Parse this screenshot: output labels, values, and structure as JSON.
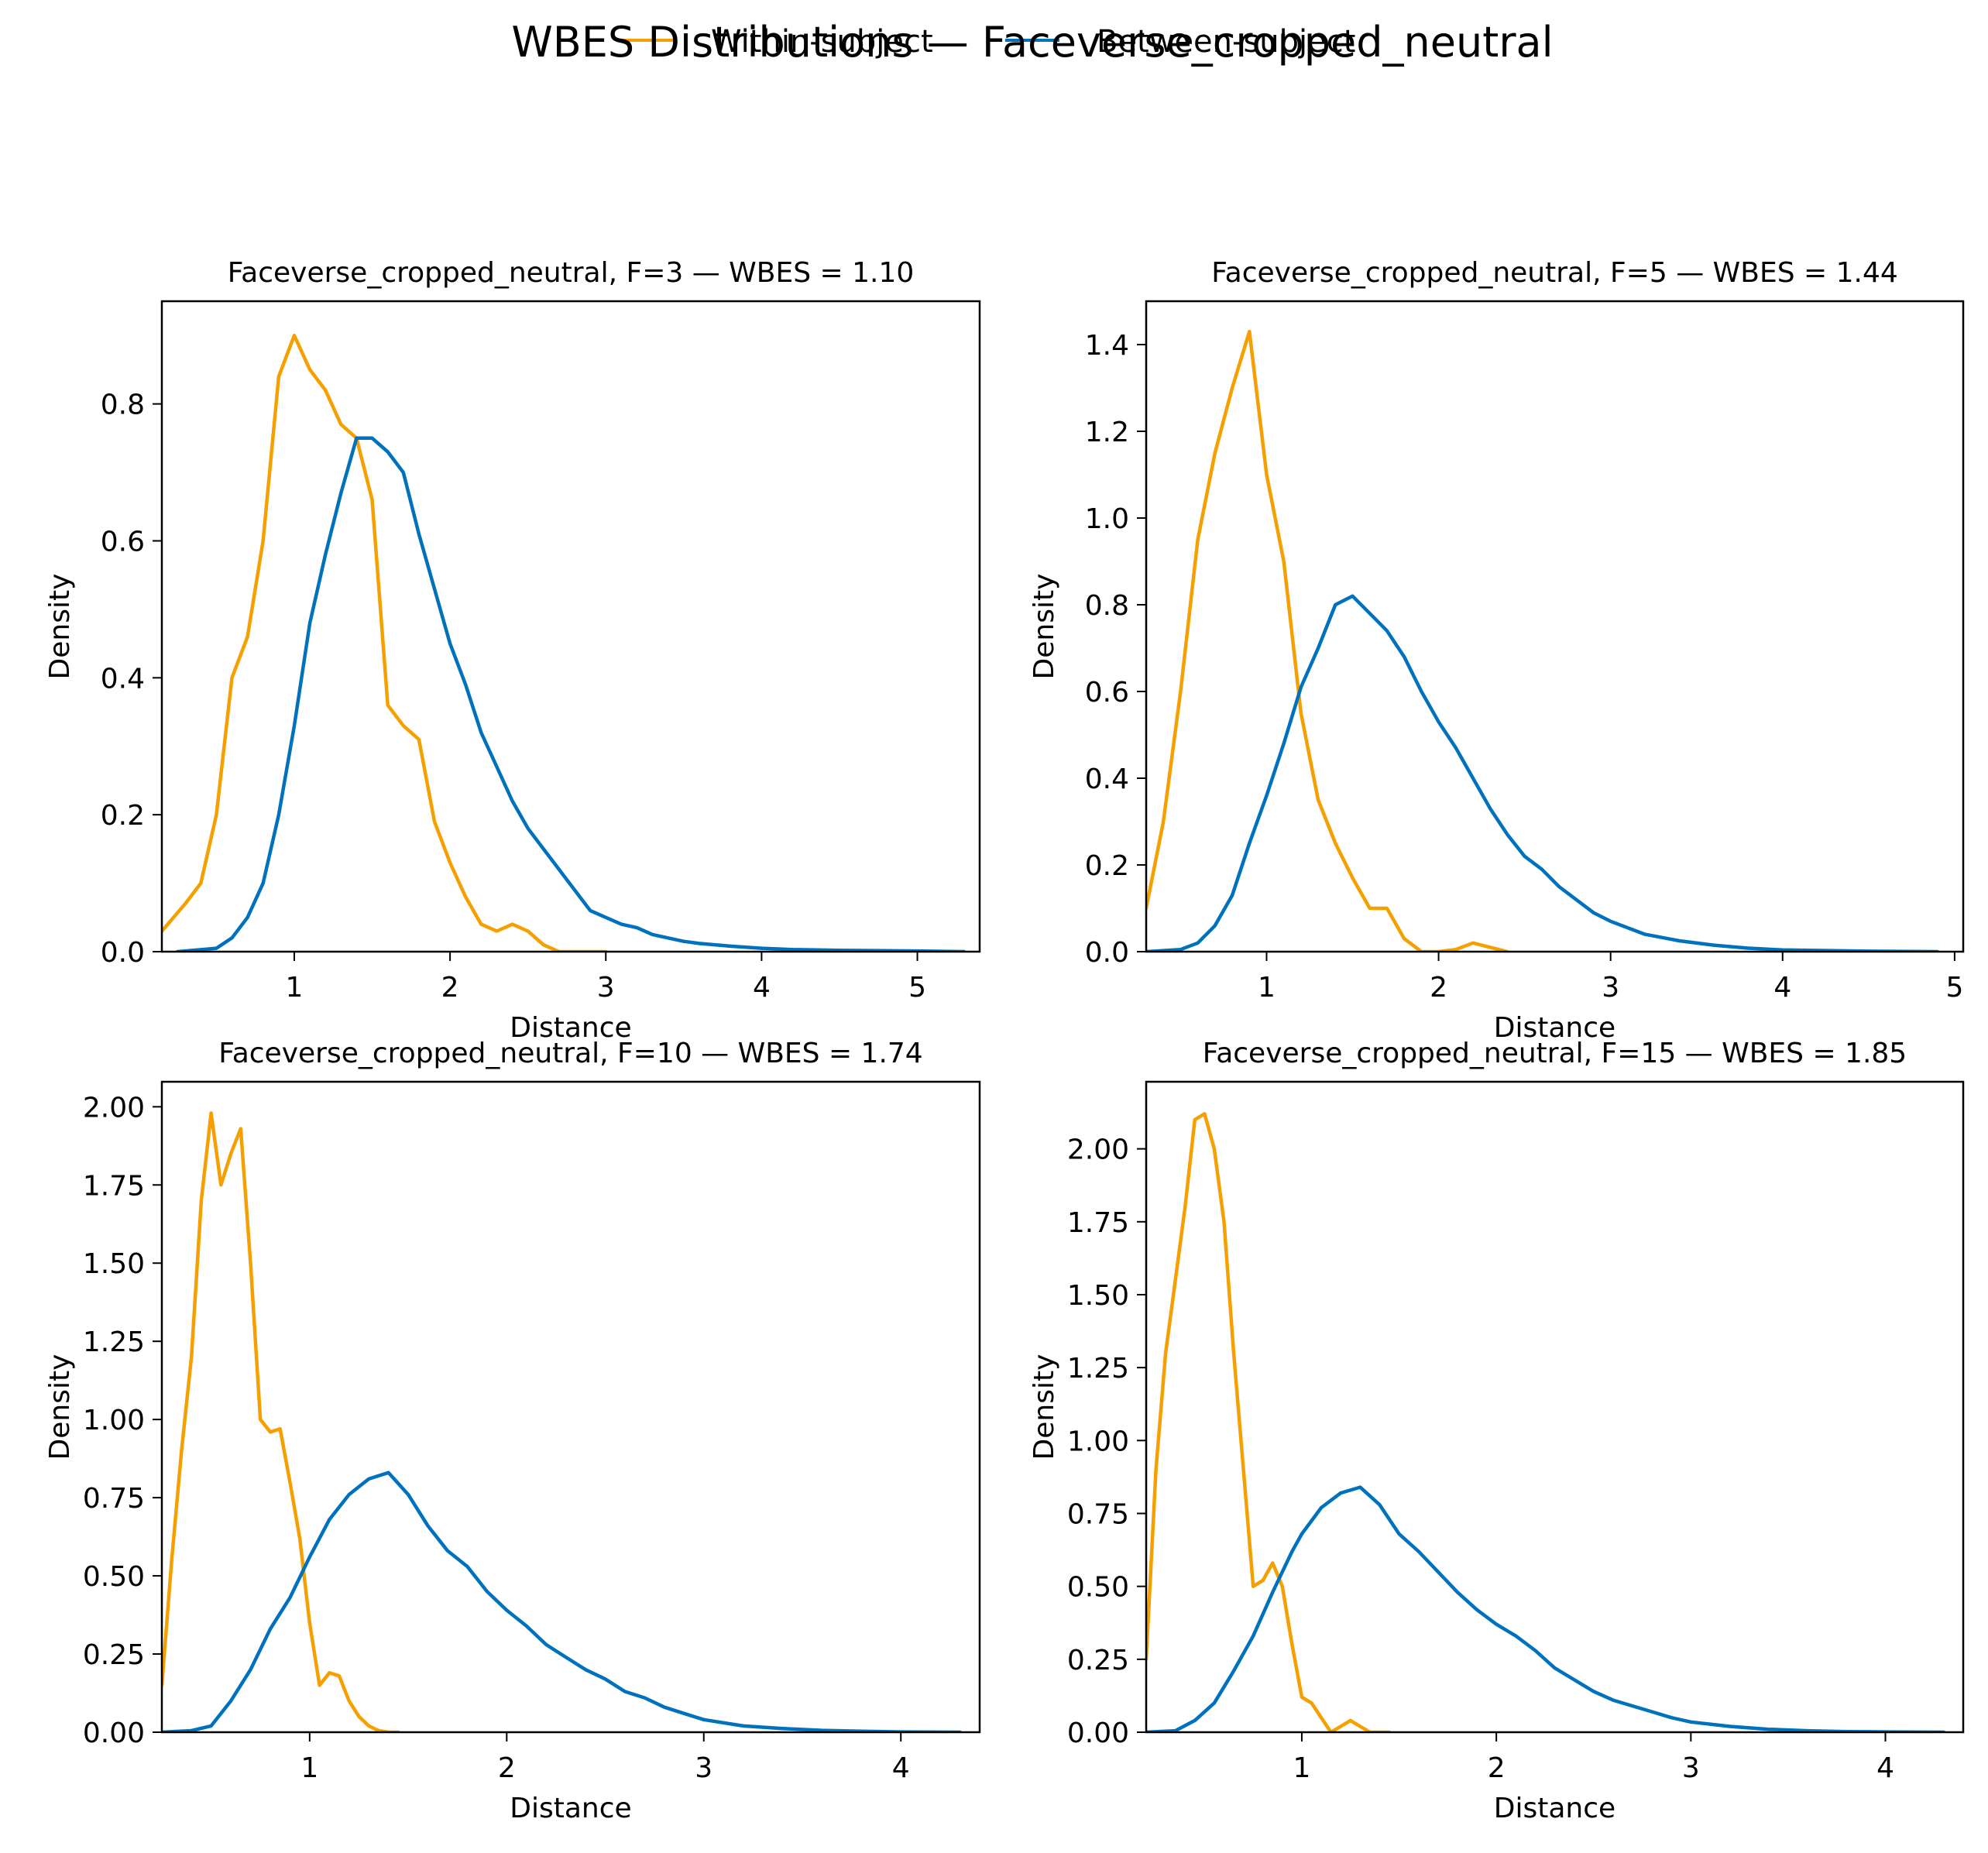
{
  "figure": {
    "suptitle": "WBES Distributions — Faceverse_cropped_neutral",
    "legend": [
      {
        "label": "Within-subject",
        "color": "#f5a000"
      },
      {
        "label": "Between-subject",
        "color": "#0072bd"
      }
    ]
  },
  "chart_data": [
    {
      "type": "line",
      "title": "Faceverse_cropped_neutral, F=3 — WBES = 1.10",
      "xlabel": "Distance",
      "ylabel": "Density",
      "xlim": [
        0.15,
        5.4
      ],
      "ylim": [
        0,
        0.95
      ],
      "xticks": [
        1,
        2,
        3,
        4,
        5
      ],
      "yticks": [
        0.0,
        0.2,
        0.4,
        0.6,
        0.8
      ],
      "ytick_labels": [
        "0.0",
        "0.2",
        "0.4",
        "0.6",
        "0.8"
      ],
      "series": [
        {
          "name": "Within-subject",
          "color": "#f5a000",
          "x": [
            0.15,
            0.3,
            0.4,
            0.5,
            0.6,
            0.7,
            0.8,
            0.9,
            1.0,
            1.1,
            1.2,
            1.3,
            1.4,
            1.5,
            1.6,
            1.7,
            1.8,
            1.9,
            2.0,
            2.1,
            2.2,
            2.3,
            2.4,
            2.5,
            2.6,
            2.7,
            2.8,
            2.9,
            3.0
          ],
          "y": [
            0.03,
            0.07,
            0.1,
            0.2,
            0.4,
            0.46,
            0.6,
            0.84,
            0.9,
            0.85,
            0.82,
            0.77,
            0.75,
            0.66,
            0.36,
            0.33,
            0.31,
            0.19,
            0.13,
            0.08,
            0.04,
            0.03,
            0.04,
            0.03,
            0.01,
            0.0,
            0.0,
            0.0,
            0.0
          ]
        },
        {
          "name": "Between-subject",
          "color": "#0072bd",
          "x": [
            0.25,
            0.5,
            0.6,
            0.7,
            0.8,
            0.9,
            1.0,
            1.1,
            1.2,
            1.3,
            1.4,
            1.5,
            1.6,
            1.7,
            1.8,
            1.9,
            2.0,
            2.1,
            2.2,
            2.3,
            2.4,
            2.5,
            2.6,
            2.7,
            2.8,
            2.9,
            3.0,
            3.1,
            3.2,
            3.3,
            3.4,
            3.5,
            3.6,
            3.8,
            4.0,
            4.2,
            4.5,
            5.0,
            5.3
          ],
          "y": [
            0.0,
            0.005,
            0.02,
            0.05,
            0.1,
            0.2,
            0.33,
            0.48,
            0.58,
            0.67,
            0.75,
            0.75,
            0.73,
            0.7,
            0.61,
            0.53,
            0.45,
            0.39,
            0.32,
            0.27,
            0.22,
            0.18,
            0.15,
            0.12,
            0.09,
            0.06,
            0.05,
            0.04,
            0.035,
            0.025,
            0.02,
            0.015,
            0.012,
            0.008,
            0.005,
            0.003,
            0.002,
            0.001,
            0.0
          ]
        }
      ]
    },
    {
      "type": "line",
      "title": "Faceverse_cropped_neutral, F=5 — WBES = 1.44",
      "xlabel": "Distance",
      "ylabel": "Density",
      "xlim": [
        0.3,
        5.05
      ],
      "ylim": [
        0,
        1.5
      ],
      "xticks": [
        1,
        2,
        3,
        4,
        5
      ],
      "yticks": [
        0.0,
        0.2,
        0.4,
        0.6,
        0.8,
        1.0,
        1.2,
        1.4
      ],
      "ytick_labels": [
        "0.0",
        "0.2",
        "0.4",
        "0.6",
        "0.8",
        "1.0",
        "1.2",
        "1.4"
      ],
      "series": [
        {
          "name": "Within-subject",
          "color": "#f5a000",
          "x": [
            0.3,
            0.4,
            0.5,
            0.6,
            0.7,
            0.8,
            0.9,
            1.0,
            1.1,
            1.2,
            1.3,
            1.4,
            1.5,
            1.6,
            1.7,
            1.8,
            1.9,
            2.0,
            2.1,
            2.2,
            2.3,
            2.4
          ],
          "y": [
            0.1,
            0.3,
            0.6,
            0.95,
            1.15,
            1.3,
            1.43,
            1.1,
            0.9,
            0.55,
            0.35,
            0.25,
            0.17,
            0.1,
            0.1,
            0.03,
            0.0,
            0.0,
            0.005,
            0.02,
            0.01,
            0.0
          ]
        },
        {
          "name": "Between-subject",
          "color": "#0072bd",
          "x": [
            0.3,
            0.5,
            0.6,
            0.7,
            0.8,
            0.9,
            1.0,
            1.1,
            1.2,
            1.3,
            1.4,
            1.5,
            1.6,
            1.7,
            1.8,
            1.9,
            2.0,
            2.1,
            2.2,
            2.3,
            2.4,
            2.5,
            2.6,
            2.7,
            2.8,
            2.9,
            3.0,
            3.2,
            3.4,
            3.6,
            3.8,
            4.0,
            4.5,
            4.9
          ],
          "y": [
            0.0,
            0.005,
            0.02,
            0.06,
            0.13,
            0.25,
            0.36,
            0.48,
            0.61,
            0.7,
            0.8,
            0.82,
            0.78,
            0.74,
            0.68,
            0.6,
            0.53,
            0.47,
            0.4,
            0.33,
            0.27,
            0.22,
            0.19,
            0.15,
            0.12,
            0.09,
            0.07,
            0.04,
            0.025,
            0.015,
            0.008,
            0.004,
            0.001,
            0.0
          ]
        }
      ]
    },
    {
      "type": "line",
      "title": "Faceverse_cropped_neutral, F=10 — WBES = 1.74",
      "xlabel": "Distance",
      "ylabel": "Density",
      "xlim": [
        0.25,
        4.4
      ],
      "ylim": [
        0,
        2.08
      ],
      "xticks": [
        1,
        2,
        3,
        4
      ],
      "yticks": [
        0.0,
        0.25,
        0.5,
        0.75,
        1.0,
        1.25,
        1.5,
        1.75,
        2.0
      ],
      "ytick_labels": [
        "0.00",
        "0.25",
        "0.50",
        "0.75",
        "1.00",
        "1.25",
        "1.50",
        "1.75",
        "2.00"
      ],
      "series": [
        {
          "name": "Within-subject",
          "color": "#f5a000",
          "x": [
            0.25,
            0.3,
            0.35,
            0.4,
            0.45,
            0.5,
            0.55,
            0.6,
            0.65,
            0.7,
            0.75,
            0.8,
            0.85,
            0.9,
            0.95,
            1.0,
            1.05,
            1.1,
            1.15,
            1.2,
            1.25,
            1.3,
            1.35,
            1.4,
            1.45
          ],
          "y": [
            0.15,
            0.55,
            0.9,
            1.2,
            1.7,
            1.98,
            1.75,
            1.85,
            1.93,
            1.5,
            1.0,
            0.96,
            0.97,
            0.8,
            0.62,
            0.35,
            0.15,
            0.19,
            0.18,
            0.1,
            0.05,
            0.02,
            0.005,
            0.0,
            0.0
          ]
        },
        {
          "name": "Between-subject",
          "color": "#0072bd",
          "x": [
            0.25,
            0.4,
            0.5,
            0.6,
            0.7,
            0.8,
            0.9,
            1.0,
            1.1,
            1.2,
            1.3,
            1.4,
            1.5,
            1.6,
            1.7,
            1.8,
            1.9,
            2.0,
            2.1,
            2.2,
            2.3,
            2.4,
            2.5,
            2.6,
            2.7,
            2.8,
            2.9,
            3.0,
            3.2,
            3.4,
            3.6,
            3.8,
            4.0,
            4.3
          ],
          "y": [
            0.0,
            0.005,
            0.02,
            0.1,
            0.2,
            0.33,
            0.43,
            0.56,
            0.68,
            0.76,
            0.81,
            0.83,
            0.76,
            0.66,
            0.58,
            0.53,
            0.45,
            0.39,
            0.34,
            0.28,
            0.24,
            0.2,
            0.17,
            0.13,
            0.11,
            0.08,
            0.06,
            0.04,
            0.02,
            0.012,
            0.006,
            0.003,
            0.001,
            0.0
          ]
        }
      ]
    },
    {
      "type": "line",
      "title": "Faceverse_cropped_neutral, F=15 — WBES = 1.85",
      "xlabel": "Distance",
      "ylabel": "Density",
      "xlim": [
        0.2,
        4.4
      ],
      "ylim": [
        0,
        2.23
      ],
      "xticks": [
        1,
        2,
        3,
        4
      ],
      "yticks": [
        0.0,
        0.25,
        0.5,
        0.75,
        1.0,
        1.25,
        1.5,
        1.75,
        2.0
      ],
      "ytick_labels": [
        "0.00",
        "0.25",
        "0.50",
        "0.75",
        "1.00",
        "1.25",
        "1.50",
        "1.75",
        "2.00"
      ],
      "series": [
        {
          "name": "Within-subject",
          "color": "#f5a000",
          "x": [
            0.2,
            0.25,
            0.3,
            0.35,
            0.4,
            0.45,
            0.5,
            0.55,
            0.6,
            0.65,
            0.7,
            0.75,
            0.8,
            0.85,
            0.9,
            0.95,
            1.0,
            1.05,
            1.1,
            1.15,
            1.2,
            1.25,
            1.3,
            1.35,
            1.4,
            1.45
          ],
          "y": [
            0.25,
            0.9,
            1.3,
            1.55,
            1.8,
            2.1,
            2.12,
            2.0,
            1.75,
            1.3,
            0.9,
            0.5,
            0.52,
            0.58,
            0.5,
            0.3,
            0.12,
            0.1,
            0.05,
            0.0,
            0.02,
            0.04,
            0.02,
            0.0,
            0.0,
            0.0
          ]
        },
        {
          "name": "Between-subject",
          "color": "#0072bd",
          "x": [
            0.2,
            0.35,
            0.45,
            0.55,
            0.65,
            0.75,
            0.85,
            0.95,
            1.0,
            1.1,
            1.2,
            1.3,
            1.4,
            1.5,
            1.6,
            1.7,
            1.8,
            1.9,
            2.0,
            2.1,
            2.2,
            2.3,
            2.4,
            2.5,
            2.6,
            2.7,
            2.8,
            2.9,
            3.0,
            3.2,
            3.4,
            3.6,
            3.8,
            4.0,
            4.3
          ],
          "y": [
            0.0,
            0.005,
            0.04,
            0.1,
            0.21,
            0.33,
            0.48,
            0.62,
            0.68,
            0.77,
            0.82,
            0.84,
            0.78,
            0.68,
            0.62,
            0.55,
            0.48,
            0.42,
            0.37,
            0.33,
            0.28,
            0.22,
            0.18,
            0.14,
            0.11,
            0.09,
            0.07,
            0.05,
            0.035,
            0.02,
            0.01,
            0.005,
            0.002,
            0.001,
            0.0
          ]
        }
      ]
    }
  ]
}
